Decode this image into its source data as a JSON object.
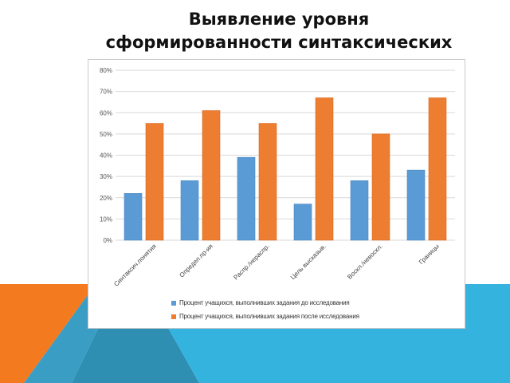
{
  "slide": {
    "title_line1": "Выявление уровня",
    "title_line2": "сформированности синтаксических"
  },
  "colors": {
    "series_before": "#5b9bd5",
    "series_after": "#ed7d31",
    "decor_teal": "#2e8fb3",
    "decor_blue": "#35b3df",
    "decor_orange": "#f47a20"
  },
  "chart_data": {
    "type": "bar",
    "categories": [
      "Синтаксич.понятия",
      "Определ.пр-ия",
      "Распр./нераспр.",
      "Цель высказыв.",
      "Воскл./невоскл.",
      "Границы"
    ],
    "series": [
      {
        "name": "Процент учащихся, выполнивших задания до исследования",
        "values": [
          22,
          28,
          39,
          17,
          28,
          33
        ]
      },
      {
        "name": "Процент учащихся, выполнивших задания после исследования",
        "values": [
          55,
          61,
          55,
          67,
          50,
          67
        ]
      }
    ],
    "yticks": [
      "80%",
      "70%",
      "60%",
      "50%",
      "40%",
      "30%",
      "20%",
      "10%",
      "0%"
    ],
    "ylim": [
      0,
      80
    ],
    "grid": true,
    "legend_position": "bottom"
  }
}
